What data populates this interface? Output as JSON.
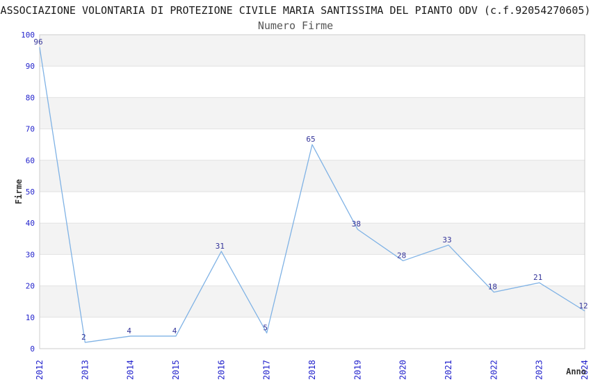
{
  "chart": {
    "title": "ASSOCIAZIONE VOLONTARIA DI PROTEZIONE CIVILE MARIA SANTISSIMA DEL PIANTO ODV (c.f.92054270605)",
    "subtitle": "Numero Firme",
    "ylabel": "Firme",
    "xlabel": "Anno"
  },
  "chart_data": {
    "type": "line",
    "title": "Numero Firme",
    "xlabel": "Anno",
    "ylabel": "Firme",
    "x": [
      2012,
      2013,
      2014,
      2015,
      2016,
      2017,
      2018,
      2019,
      2020,
      2021,
      2022,
      2023,
      2024
    ],
    "values": [
      96,
      2,
      4,
      4,
      31,
      5,
      65,
      38,
      28,
      33,
      18,
      21,
      12
    ],
    "ylim": [
      0,
      100
    ],
    "yticks": [
      0,
      10,
      20,
      30,
      40,
      50,
      60,
      70,
      80,
      90,
      100
    ],
    "grid": true,
    "legend": false,
    "point_labels_visible": true,
    "colors": {
      "line": "#7fb2e5",
      "tick_label": "#2222cc",
      "point_label": "#333399",
      "band": "#f3f3f3",
      "grid": "#e2e2e2",
      "border": "#cccccc"
    }
  }
}
